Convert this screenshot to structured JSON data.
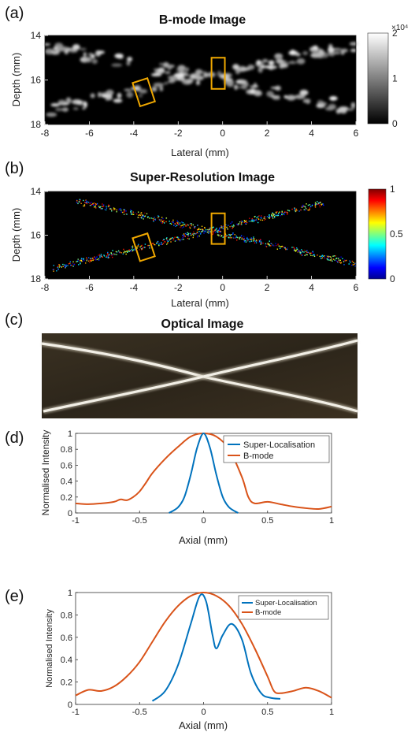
{
  "panel_labels": [
    "(a)",
    "(b)",
    "(c)",
    "(d)",
    "(e)"
  ],
  "chart_data": [
    {
      "id": "a",
      "type": "heatmap",
      "title": "B-mode Image",
      "xlabel": "Lateral (mm)",
      "ylabel": "Depth (mm)",
      "xlim": [
        -8,
        6
      ],
      "ylim": [
        18,
        14
      ],
      "xticks": [
        "-8",
        "-6",
        "-4",
        "-2",
        "0",
        "2",
        "4",
        "6"
      ],
      "yticks": [
        "14",
        "16",
        "18"
      ],
      "colorbar": {
        "colormap": "gray",
        "ticks": [
          "0",
          "1",
          "2"
        ],
        "exponent_label": "×10⁴"
      },
      "lines": [
        {
          "x": [
            -8,
            6
          ],
          "y": [
            17.4,
            14.4
          ]
        },
        {
          "x": [
            -8,
            6
          ],
          "y": [
            14.5,
            17.3
          ]
        }
      ],
      "boxes": [
        {
          "x": [
            -3.9,
            -3.2
          ],
          "y": [
            16.3,
            16.8
          ]
        },
        {
          "x": [
            -0.5,
            0.1
          ],
          "y": [
            15.0,
            16.4
          ]
        }
      ]
    },
    {
      "id": "b",
      "type": "scatter",
      "title": "Super-Resolution Image",
      "xlabel": "Lateral (mm)",
      "ylabel": "Depth (mm)",
      "xlim": [
        -8,
        6
      ],
      "ylim": [
        18,
        14
      ],
      "xticks": [
        "-8",
        "-6",
        "-4",
        "-2",
        "0",
        "2",
        "4",
        "6"
      ],
      "yticks": [
        "14",
        "16",
        "18"
      ],
      "colorbar": {
        "colormap": "jet",
        "ticks": [
          "0",
          "0.5",
          "1"
        ]
      },
      "lines": [
        {
          "x": [
            -7.7,
            4.6
          ],
          "y": [
            17.5,
            14.5
          ]
        },
        {
          "x": [
            -6.6,
            6
          ],
          "y": [
            14.4,
            17.3
          ]
        }
      ],
      "boxes": [
        {
          "x": [
            -3.9,
            -3.2
          ],
          "y": [
            16.3,
            16.8
          ]
        },
        {
          "x": [
            -0.5,
            0.1
          ],
          "y": [
            15.0,
            16.4
          ]
        }
      ]
    },
    {
      "id": "c",
      "type": "other",
      "title": "Optical Image"
    },
    {
      "id": "d",
      "type": "line",
      "xlabel": "Axial (mm)",
      "ylabel": "Normalised Intensity",
      "xlim": [
        -1,
        1
      ],
      "ylim": [
        0,
        1
      ],
      "xticks": [
        "-1",
        "-0.5",
        "0",
        "0.5",
        "1"
      ],
      "yticks": [
        "0",
        "0.2",
        "0.4",
        "0.6",
        "0.8",
        "1"
      ],
      "legend": "top-right",
      "series": [
        {
          "name": "Super-Localisation",
          "color": "#0072BD",
          "x": [
            -0.27,
            -0.2,
            -0.15,
            -0.1,
            -0.05,
            0,
            0.05,
            0.1,
            0.15,
            0.2,
            0.27
          ],
          "y": [
            0.0,
            0.07,
            0.2,
            0.48,
            0.82,
            1.0,
            0.82,
            0.48,
            0.2,
            0.07,
            0.0
          ]
        },
        {
          "name": "B-mode",
          "color": "#D95319",
          "x": [
            -1,
            -0.9,
            -0.8,
            -0.7,
            -0.65,
            -0.6,
            -0.55,
            -0.5,
            -0.45,
            -0.4,
            -0.3,
            -0.2,
            -0.1,
            0,
            0.1,
            0.2,
            0.3,
            0.35,
            0.4,
            0.5,
            0.6,
            0.7,
            0.8,
            0.9,
            1
          ],
          "y": [
            0.12,
            0.11,
            0.12,
            0.14,
            0.17,
            0.16,
            0.2,
            0.27,
            0.38,
            0.5,
            0.68,
            0.83,
            0.96,
            1.0,
            0.96,
            0.8,
            0.45,
            0.2,
            0.12,
            0.14,
            0.11,
            0.08,
            0.06,
            0.05,
            0.08
          ]
        }
      ]
    },
    {
      "id": "e",
      "type": "line",
      "xlabel": "Axial (mm)",
      "ylabel": "Normalised Intensity",
      "xlim": [
        -1,
        1
      ],
      "ylim": [
        0,
        1
      ],
      "xticks": [
        "-1",
        "-0.5",
        "0",
        "0.5",
        "1"
      ],
      "yticks": [
        "0",
        "0.2",
        "0.4",
        "0.6",
        "0.8",
        "1"
      ],
      "legend": "top-right",
      "series": [
        {
          "name": "Super-Localisation",
          "color": "#0072BD",
          "x": [
            -0.4,
            -0.3,
            -0.2,
            -0.1,
            -0.03,
            0.02,
            0.07,
            0.1,
            0.15,
            0.22,
            0.3,
            0.37,
            0.45,
            0.52,
            0.6
          ],
          "y": [
            0.03,
            0.12,
            0.35,
            0.72,
            0.97,
            0.92,
            0.62,
            0.5,
            0.62,
            0.72,
            0.58,
            0.28,
            0.1,
            0.06,
            0.05
          ]
        },
        {
          "name": "B-mode",
          "color": "#D95319",
          "x": [
            -1,
            -0.9,
            -0.8,
            -0.7,
            -0.6,
            -0.5,
            -0.4,
            -0.3,
            -0.2,
            -0.1,
            0,
            0.1,
            0.2,
            0.3,
            0.4,
            0.5,
            0.55,
            0.6,
            0.7,
            0.8,
            0.9,
            1
          ],
          "y": [
            0.08,
            0.13,
            0.12,
            0.16,
            0.25,
            0.38,
            0.56,
            0.74,
            0.88,
            0.97,
            1.0,
            0.97,
            0.88,
            0.72,
            0.5,
            0.25,
            0.12,
            0.1,
            0.12,
            0.15,
            0.12,
            0.06
          ]
        }
      ]
    }
  ]
}
